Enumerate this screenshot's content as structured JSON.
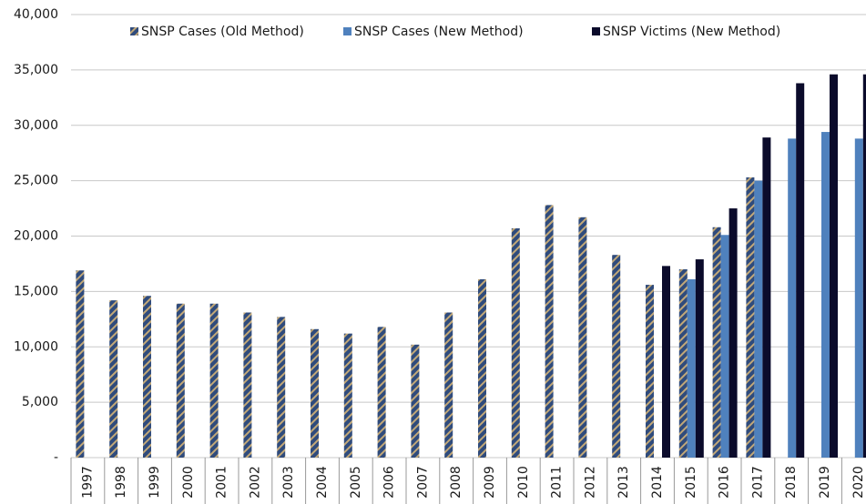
{
  "chart_data": {
    "type": "bar",
    "categories": [
      "1997",
      "1998",
      "1999",
      "2000",
      "2001",
      "2002",
      "2003",
      "2004",
      "2005",
      "2006",
      "2007",
      "2008",
      "2009",
      "2010",
      "2011",
      "2012",
      "2013",
      "2014",
      "2015",
      "2016",
      "2017",
      "2018",
      "2019",
      "2020"
    ],
    "series": [
      {
        "name": "SNSP Cases (Old Method)",
        "color": "#2f4b7c",
        "hatch": "#c2a878",
        "values": [
          16900,
          14200,
          14600,
          13900,
          13900,
          13100,
          12700,
          11600,
          11200,
          11800,
          10200,
          13100,
          16100,
          20700,
          22800,
          21700,
          18300,
          15600,
          17000,
          20800,
          25300,
          null,
          null,
          null
        ]
      },
      {
        "name": "SNSP Cases (New Method)",
        "color": "#4f81bd",
        "values": [
          null,
          null,
          null,
          null,
          null,
          null,
          null,
          null,
          null,
          null,
          null,
          null,
          null,
          null,
          null,
          null,
          null,
          null,
          16100,
          20100,
          25000,
          28800,
          29400,
          28800
        ]
      },
      {
        "name": "SNSP Victims (New Method)",
        "color": "#0b0b2b",
        "values": [
          null,
          null,
          null,
          null,
          null,
          null,
          null,
          null,
          null,
          null,
          null,
          null,
          null,
          null,
          null,
          null,
          null,
          17300,
          17900,
          22500,
          28900,
          33800,
          34600,
          34600
        ]
      }
    ],
    "ylim": [
      0,
      40000
    ],
    "yticks": [
      {
        "value": 0,
        "label": "-"
      },
      {
        "value": 5000,
        "label": "5,000"
      },
      {
        "value": 10000,
        "label": "10,000"
      },
      {
        "value": 15000,
        "label": "15,000"
      },
      {
        "value": 20000,
        "label": "20,000"
      },
      {
        "value": 25000,
        "label": "25,000"
      },
      {
        "value": 30000,
        "label": "30,000"
      },
      {
        "value": 35000,
        "label": "35,000"
      },
      {
        "value": 40000,
        "label": "40,000"
      }
    ],
    "grid": true,
    "legend": "top"
  }
}
